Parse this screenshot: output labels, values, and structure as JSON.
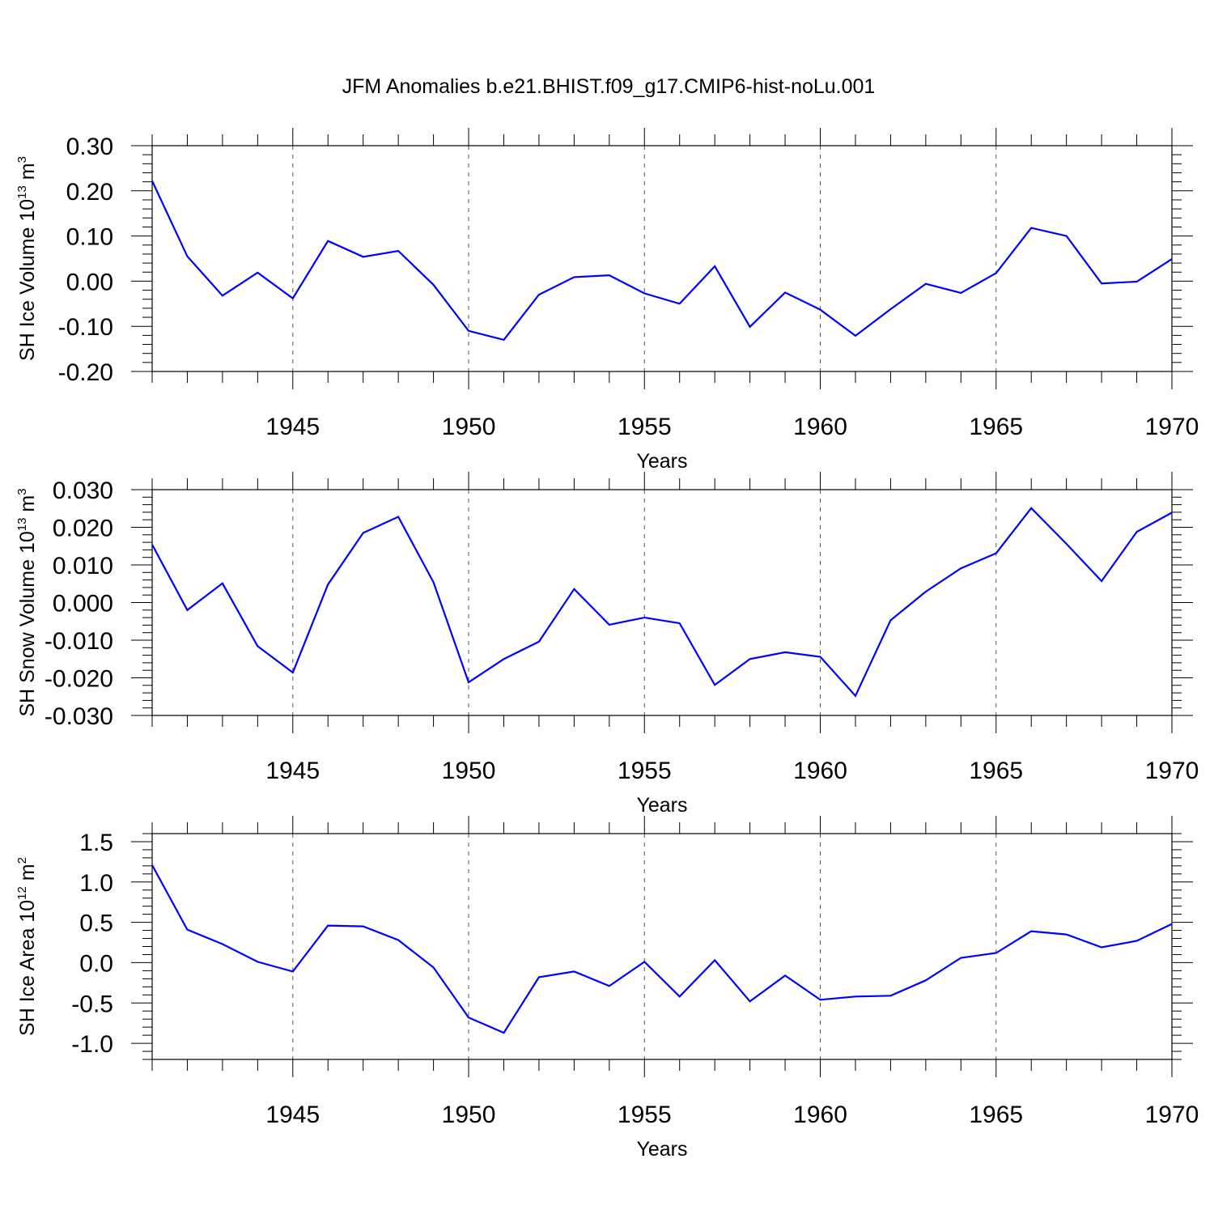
{
  "chart_data": [
    {
      "type": "line",
      "id": "ice-volume",
      "title": "JFM Anomalies b.e21.BHIST.f09_g17.CMIP6-hist-noLu.001",
      "xlabel": "Years",
      "ylabel": {
        "text": "SH Ice Volume 10",
        "sup": "13",
        "unit": " m",
        "unit_sup": "3"
      },
      "xlim": [
        1941,
        1970
      ],
      "ylim": [
        -0.2,
        0.3
      ],
      "xticks": [
        "1945",
        "1950",
        "1955",
        "1960",
        "1965",
        "1970"
      ],
      "yticks": [
        "0.30",
        "0.20",
        "0.10",
        "0.00",
        "-0.10",
        "-0.20"
      ],
      "x": [
        1941,
        1942,
        1943,
        1944,
        1945,
        1946,
        1947,
        1948,
        1949,
        1950,
        1951,
        1952,
        1953,
        1954,
        1955,
        1956,
        1957,
        1958,
        1959,
        1960,
        1961,
        1962,
        1963,
        1964,
        1965,
        1966,
        1967,
        1968,
        1969,
        1970
      ],
      "series": [
        {
          "name": "SH Ice Volume",
          "color": "#0000ff",
          "values": [
            0.222,
            0.055,
            -0.032,
            0.019,
            -0.038,
            0.089,
            0.054,
            0.067,
            -0.008,
            -0.11,
            -0.13,
            -0.03,
            0.009,
            0.013,
            -0.027,
            -0.05,
            0.033,
            -0.101,
            -0.025,
            -0.063,
            -0.121,
            -0.062,
            -0.006,
            -0.026,
            0.018,
            0.118,
            0.1,
            -0.005,
            -0.001,
            0.049
          ]
        }
      ]
    },
    {
      "type": "line",
      "id": "snow-volume",
      "title": "",
      "xlabel": "Years",
      "ylabel": {
        "text": "SH Snow Volume 10",
        "sup": "13",
        "unit": " m",
        "unit_sup": "3"
      },
      "xlim": [
        1941,
        1970
      ],
      "ylim": [
        -0.03,
        0.03
      ],
      "xticks": [
        "1945",
        "1950",
        "1955",
        "1960",
        "1965",
        "1970"
      ],
      "yticks": [
        "0.030",
        "0.020",
        "0.010",
        "0.000",
        "-0.010",
        "-0.020",
        "-0.030"
      ],
      "x": [
        1941,
        1942,
        1943,
        1944,
        1945,
        1946,
        1947,
        1948,
        1949,
        1950,
        1951,
        1952,
        1953,
        1954,
        1955,
        1956,
        1957,
        1958,
        1959,
        1960,
        1961,
        1962,
        1963,
        1964,
        1965,
        1966,
        1967,
        1968,
        1969,
        1970
      ],
      "series": [
        {
          "name": "SH Snow Volume",
          "color": "#0000ff",
          "values": [
            0.0154,
            -0.002,
            0.0051,
            -0.0116,
            -0.0186,
            0.0048,
            0.0185,
            0.0228,
            0.0054,
            -0.0212,
            -0.015,
            -0.0104,
            0.0036,
            -0.0059,
            -0.004,
            -0.0055,
            -0.0219,
            -0.015,
            -0.0132,
            -0.0144,
            -0.0248,
            -0.0047,
            0.0029,
            0.0091,
            0.0131,
            0.0251,
            0.0156,
            0.0057,
            0.0188,
            0.0239
          ]
        }
      ]
    },
    {
      "type": "line",
      "id": "ice-area",
      "title": "",
      "xlabel": "Years",
      "ylabel": {
        "text": "SH Ice Area 10",
        "sup": "12",
        "unit": " m",
        "unit_sup": "2"
      },
      "xlim": [
        1941,
        1970
      ],
      "ylim": [
        -1.2,
        1.6
      ],
      "xticks": [
        "1945",
        "1950",
        "1955",
        "1960",
        "1965",
        "1970"
      ],
      "yticks": [
        "1.5",
        "1.0",
        "0.5",
        "0.0",
        "-0.5",
        "-1.0"
      ],
      "x": [
        1941,
        1942,
        1943,
        1944,
        1945,
        1946,
        1947,
        1948,
        1949,
        1950,
        1951,
        1952,
        1953,
        1954,
        1955,
        1956,
        1957,
        1958,
        1959,
        1960,
        1961,
        1962,
        1963,
        1964,
        1965,
        1966,
        1967,
        1968,
        1969,
        1970
      ],
      "series": [
        {
          "name": "SH Ice Area",
          "color": "#0000ff",
          "values": [
            1.21,
            0.41,
            0.23,
            0.01,
            -0.11,
            0.46,
            0.45,
            0.28,
            -0.06,
            -0.68,
            -0.87,
            -0.18,
            -0.11,
            -0.29,
            0.01,
            -0.42,
            0.03,
            -0.48,
            -0.16,
            -0.46,
            -0.42,
            -0.41,
            -0.22,
            0.06,
            0.12,
            0.39,
            0.35,
            0.19,
            0.27,
            0.48
          ]
        }
      ]
    }
  ]
}
